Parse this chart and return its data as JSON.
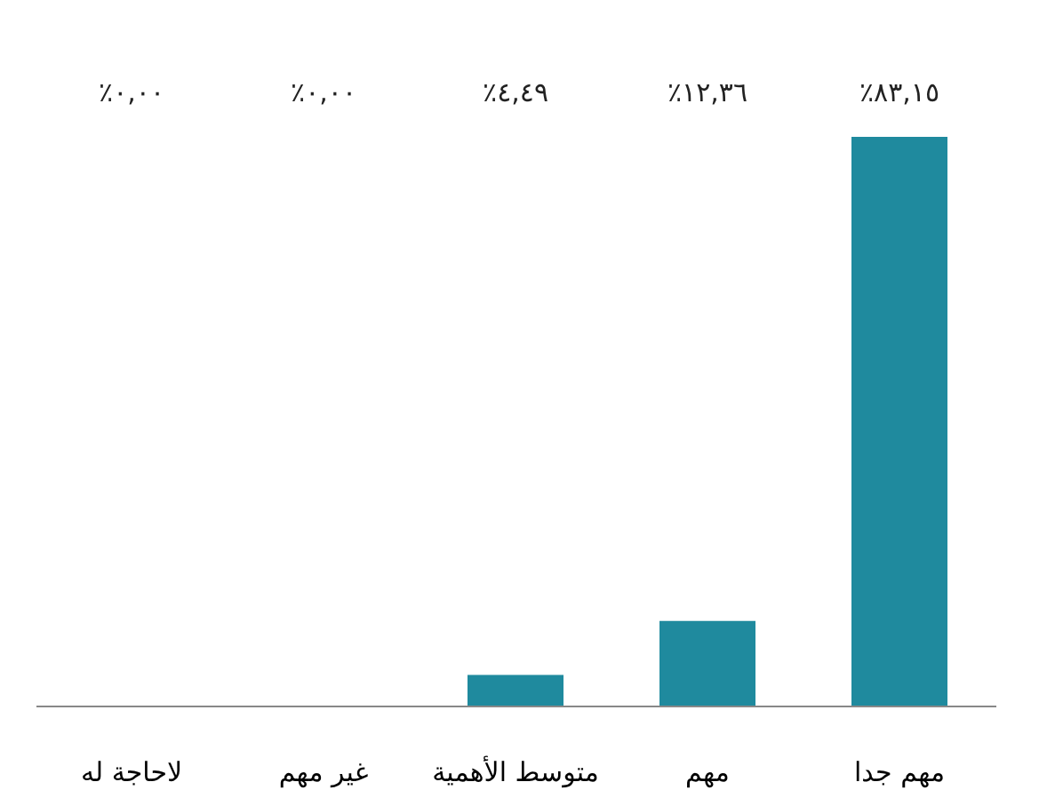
{
  "chart_data": {
    "type": "bar",
    "categories": [
      "لاحاجة له",
      "غير مهم",
      "متوسط الأهمية",
      "مهم",
      "مهم جدا"
    ],
    "values": [
      0.0,
      0.0,
      4.49,
      12.36,
      83.15
    ],
    "value_labels": [
      "٪٠,٠٠",
      "٪٠,٠٠",
      "٪٤,٤٩",
      "٪١٢,٣٦",
      "٪٨٣,١٥"
    ],
    "color": "#1f8a9e"
  }
}
